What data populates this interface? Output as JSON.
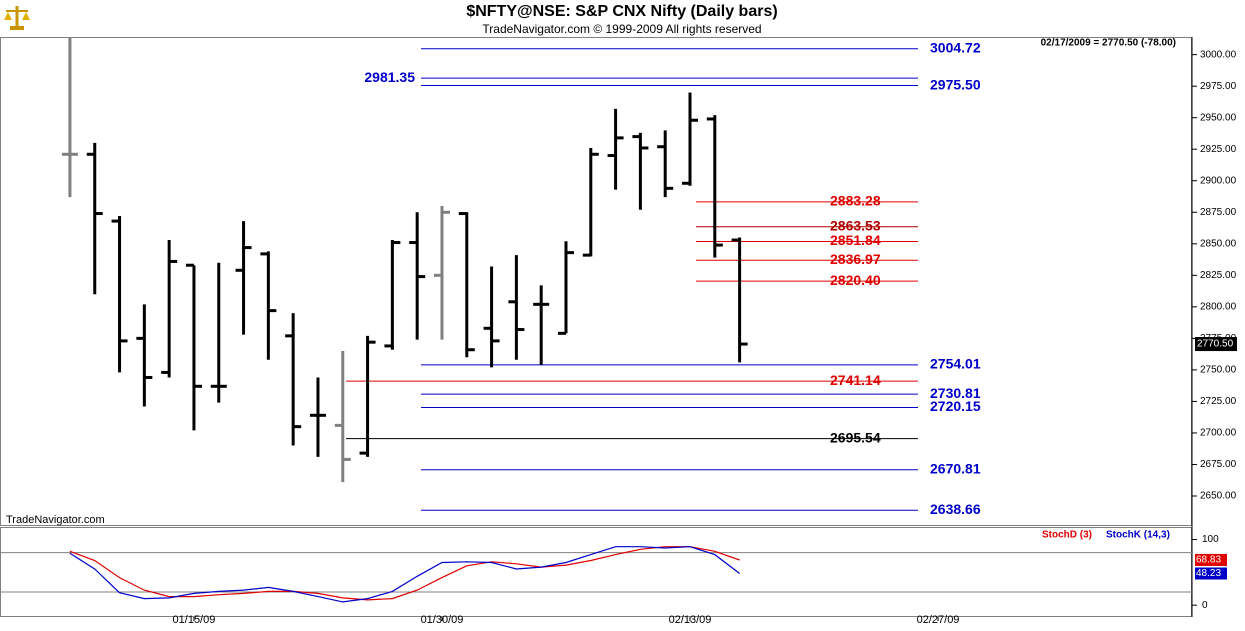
{
  "header": {
    "title": "$NFTY@NSE:  S&P CNX Nifty  (Daily bars)",
    "subtitle": "TradeNavigator.com © 1999-2009 All rights reserved",
    "info": "02/17/2009 = 2770.50 (-78.00)",
    "watermark": "TradeNavigator.com"
  },
  "chart_data": [
    {
      "type": "ohlc",
      "x": [
        0,
        1,
        2,
        3,
        4,
        5,
        6,
        7,
        8,
        9,
        10,
        11,
        12,
        13,
        14,
        15,
        16,
        17,
        18,
        19,
        20,
        21,
        22,
        23,
        24,
        25,
        26,
        27
      ],
      "open": [
        2921,
        2921,
        2868,
        2775,
        2748,
        2833,
        2737,
        2829,
        2842,
        2777,
        2714,
        2706,
        2684,
        2769,
        2851,
        2825,
        2874,
        2783,
        2804,
        2802,
        2779,
        2841,
        2920,
        2935,
        2927,
        2898,
        2949,
        2853
      ],
      "high": [
        3014,
        2930,
        2872,
        2802,
        2853,
        2833,
        2835,
        2868,
        2844,
        2795,
        2744,
        2765,
        2777,
        2853,
        2875,
        2880,
        2875,
        2832,
        2841,
        2817,
        2852,
        2926,
        2957,
        2938,
        2940,
        2970,
        2952,
        2855
      ],
      "low": [
        2887,
        2810,
        2748,
        2721,
        2744,
        2702,
        2724,
        2778,
        2758,
        2690,
        2681,
        2661,
        2681,
        2766,
        2774,
        2774,
        2760,
        2752,
        2758,
        2754,
        2779,
        2840,
        2893,
        2877,
        2887,
        2896,
        2839,
        2756
      ],
      "close": [
        2921,
        2874,
        2773,
        2744,
        2836,
        2737,
        2737,
        2847,
        2797,
        2705,
        2714,
        2679,
        2772,
        2851,
        2824,
        2875,
        2766,
        2773,
        2782,
        2802,
        2843,
        2921,
        2934,
        2926,
        2894,
        2948,
        2849,
        2770.5
      ],
      "bar_colors": [
        "#808080",
        "#000000",
        "#000000",
        "#000000",
        "#000000",
        "#000000",
        "#000000",
        "#000000",
        "#000000",
        "#000000",
        "#000000",
        "#808080",
        "#000000",
        "#000000",
        "#000000",
        "#808080",
        "#000000",
        "#000000",
        "#000000",
        "#000000",
        "#000000",
        "#000000",
        "#000000",
        "#000000",
        "#000000",
        "#000000",
        "#000000",
        "#000000"
      ],
      "xlim": [
        -2.82,
        45.24
      ],
      "xticks": [
        {
          "value": 5,
          "label": "01/15/09"
        },
        {
          "value": 15,
          "label": "01/30/09"
        },
        {
          "value": 25,
          "label": "02/13/09"
        },
        {
          "value": 35,
          "label": "02/27/09"
        }
      ],
      "ylim": [
        2627,
        3014
      ],
      "yticks": [
        {
          "value": 2650,
          "label": "2650.00"
        },
        {
          "value": 2675,
          "label": "2675.00"
        },
        {
          "value": 2700,
          "label": "2700.00"
        },
        {
          "value": 2725,
          "label": "2725.00"
        },
        {
          "value": 2750,
          "label": "2750.00"
        },
        {
          "value": 2775,
          "label": "2775.00"
        },
        {
          "value": 2800,
          "label": "2800.00"
        },
        {
          "value": 2825,
          "label": "2825.00"
        },
        {
          "value": 2850,
          "label": "2850.00"
        },
        {
          "value": 2875,
          "label": "2875.00"
        },
        {
          "value": 2900,
          "label": "2900.00"
        },
        {
          "value": 2925,
          "label": "2925.00"
        },
        {
          "value": 2950,
          "label": "2950.00"
        },
        {
          "value": 2975,
          "label": "2975.00"
        },
        {
          "value": 3000,
          "label": "3000.00"
        }
      ],
      "last_price": {
        "value": 2770.5,
        "label": "2770.50"
      },
      "levels": [
        {
          "value": 3004.72,
          "color": "#0000cc"
        },
        {
          "value": 2981.35,
          "color": "#0000cc"
        },
        {
          "value": 2975.5,
          "label": "2975.50",
          "color": "#0000cc"
        },
        {
          "value": 2883.28,
          "color": "#e00000"
        },
        {
          "value": 2863.53,
          "color": "#b00000"
        },
        {
          "value": 2851.84,
          "color": "#e00000"
        },
        {
          "value": 2836.97,
          "color": "#e00000"
        },
        {
          "value": 2820.4,
          "label": "2820.40",
          "color": "#e00000"
        },
        {
          "value": 2754.01,
          "color": "#0000cc"
        },
        {
          "value": 2741.14,
          "color": "#e00000"
        },
        {
          "value": 2730.81,
          "color": "#0000cc"
        },
        {
          "value": 2720.15,
          "color": "#0000cc"
        },
        {
          "value": 2695.54,
          "color": "#000000"
        },
        {
          "value": 2670.81,
          "color": "#0000cc"
        },
        {
          "value": 2638.66,
          "color": "#0000cc"
        }
      ]
    },
    {
      "type": "line",
      "x": [
        0,
        1,
        2,
        3,
        4,
        5,
        6,
        7,
        8,
        9,
        10,
        11,
        12,
        13,
        14,
        15,
        16,
        17,
        18,
        19,
        20,
        21,
        22,
        23,
        24,
        25,
        26,
        27
      ],
      "ylim": [
        -18,
        119
      ],
      "yticks": [
        0,
        100
      ],
      "guides": [
        20,
        80
      ],
      "series": [
        {
          "name": "StochD (3)",
          "color": "#e00000",
          "values": [
            82,
            68,
            42,
            23,
            13,
            13,
            16,
            18,
            21,
            21,
            18,
            11,
            8,
            10,
            23,
            42,
            60,
            66,
            63,
            58,
            61,
            68,
            77,
            85,
            89,
            89,
            82,
            68.83
          ]
        },
        {
          "name": "StochK (14,3)",
          "color": "#0000c8",
          "values": [
            79,
            55,
            19,
            10,
            11,
            18,
            21,
            23,
            27,
            21,
            13,
            5,
            10,
            21,
            44,
            65,
            66,
            65,
            55,
            58,
            65,
            77,
            89,
            89,
            87,
            89,
            77,
            48.23
          ]
        }
      ]
    }
  ]
}
